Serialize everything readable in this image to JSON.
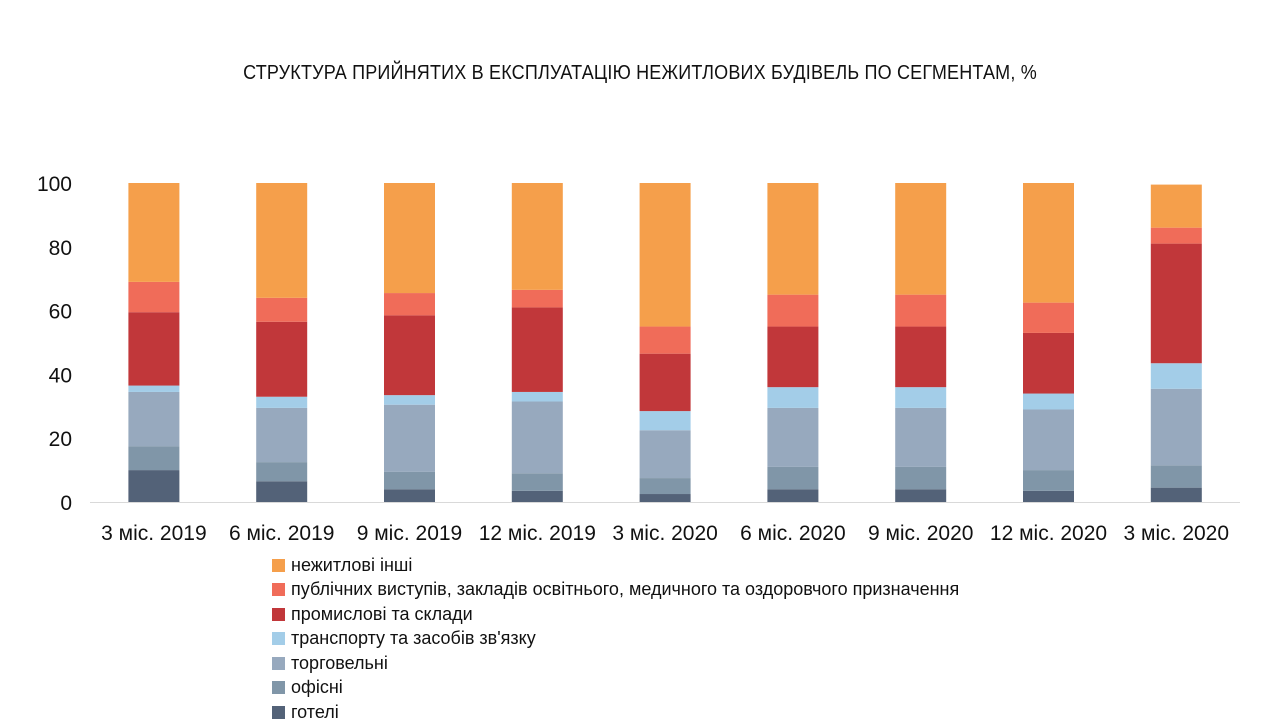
{
  "chart_data": {
    "type": "bar",
    "stacked": true,
    "title": "СТРУКТУРА ПРИЙНЯТИХ В ЕКСПЛУАТАЦІЮ НЕЖИТЛОВИХ БУДІВЕЛЬ ПО СЕГМЕНТАМ, %",
    "xlabel": "",
    "ylabel": "",
    "ylim": [
      0,
      100
    ],
    "yticks": [
      0,
      20,
      40,
      60,
      80,
      100
    ],
    "grid": false,
    "legend_position": "bottom",
    "categories": [
      "3 міс. 2019",
      "6 міс. 2019",
      "9 міс. 2019",
      "12 міс. 2019",
      "3 міс. 2020",
      "6 міс. 2020",
      "9 міс. 2020",
      "12 міс. 2020",
      "3 міс. 2020"
    ],
    "series": [
      {
        "name": "готелі",
        "color": "#536278",
        "values": [
          10,
          6.5,
          4,
          3.5,
          2.5,
          4,
          4,
          3.5,
          4.5
        ]
      },
      {
        "name": "офісні",
        "color": "#8096a8",
        "values": [
          7.5,
          6,
          5.5,
          5.5,
          5,
          7,
          7,
          6.5,
          7
        ]
      },
      {
        "name": "торговельні",
        "color": "#97a9be",
        "values": [
          17,
          17,
          21,
          22.5,
          15,
          18.5,
          18.5,
          19,
          24
        ]
      },
      {
        "name": "транспорту та засобів зв'язку",
        "color": "#a3cde8",
        "values": [
          2,
          3.5,
          3,
          3,
          6,
          6.5,
          6.5,
          5,
          8
        ]
      },
      {
        "name": "промислові та склади",
        "color": "#c1373a",
        "values": [
          23,
          23.5,
          25,
          26.5,
          18,
          19,
          19,
          19,
          37.5
        ]
      },
      {
        "name": "публічних виступів, закладів освітнього, медичного та оздоровчого призначення",
        "color": "#f06c59",
        "values": [
          9.5,
          7.5,
          7,
          5.5,
          8.5,
          10,
          10,
          9.5,
          5
        ]
      },
      {
        "name": "нежитлові інші",
        "color": "#f59f4b",
        "values": [
          31,
          36,
          34.5,
          33.5,
          45,
          35,
          35,
          37.5,
          13.5
        ]
      }
    ]
  }
}
